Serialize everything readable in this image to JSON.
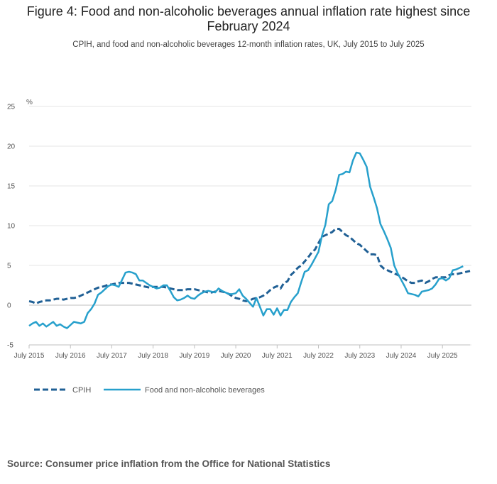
{
  "header": {
    "title": "Figure 4: Food and non-alcoholic beverages annual inflation rate highest since February 2024",
    "subtitle": "CPIH, and food and non-alcoholic beverages 12-month inflation rates, UK, July 2015 to July 2025"
  },
  "footer": {
    "source": "Source: Consumer price inflation from the Office for National Statistics"
  },
  "chart_data": {
    "type": "line",
    "title": "Figure 4: Food and non-alcoholic beverages annual inflation rate highest since February 2024",
    "subtitle": "CPIH, and food and non-alcoholic beverages 12-month inflation rates, UK, July 2015 to July 2025",
    "ylabel": "%",
    "xlabel": "",
    "ylim": [
      -5,
      25
    ],
    "yticks": [
      "25",
      "20",
      "15",
      "10",
      "5",
      "0",
      "-5"
    ],
    "xticks": [
      "July 2015",
      "July 2016",
      "July 2017",
      "July 2018",
      "July 2019",
      "July 2020",
      "July 2021",
      "July 2022",
      "July 2023",
      "July 2024",
      "July 2025"
    ],
    "x_start": "July 2015",
    "x_step": "1 month",
    "legend_position": "bottom-left",
    "colors": {
      "cpih": "#206095",
      "food": "#27a0cc",
      "grid": "#e6e6e6"
    },
    "series": [
      {
        "name": "CPIH",
        "style": "dashed",
        "values": [
          0.5,
          0.4,
          0.2,
          0.4,
          0.5,
          0.6,
          0.6,
          0.7,
          0.8,
          0.8,
          0.7,
          0.8,
          0.9,
          0.9,
          1.0,
          1.2,
          1.4,
          1.6,
          1.8,
          2.0,
          2.2,
          2.3,
          2.4,
          2.6,
          2.6,
          2.7,
          2.8,
          2.8,
          2.8,
          2.8,
          2.7,
          2.6,
          2.5,
          2.4,
          2.3,
          2.2,
          2.3,
          2.3,
          2.3,
          2.3,
          2.2,
          2.1,
          2.0,
          1.9,
          1.9,
          1.9,
          2.0,
          2.0,
          2.0,
          1.9,
          1.8,
          1.7,
          1.6,
          1.6,
          1.7,
          1.8,
          1.7,
          1.6,
          1.4,
          1.1,
          0.9,
          0.8,
          0.6,
          0.5,
          0.6,
          0.8,
          0.9,
          1.0,
          1.2,
          1.5,
          1.9,
          2.2,
          2.4,
          2.1,
          2.8,
          3.0,
          3.8,
          4.2,
          4.7,
          5.0,
          5.5,
          6.0,
          6.6,
          7.0,
          7.8,
          8.6,
          8.8,
          9.0,
          9.2,
          9.6,
          9.6,
          9.2,
          8.8,
          8.6,
          8.2,
          7.8,
          7.6,
          7.2,
          6.8,
          6.4,
          6.4,
          6.3,
          5.0,
          4.6,
          4.4,
          4.2,
          4.0,
          3.8,
          3.6,
          3.3,
          3.0,
          2.8,
          2.8,
          3.0,
          3.1,
          2.8,
          3.0,
          3.3,
          3.5,
          3.5,
          3.5,
          3.5,
          3.8,
          3.9,
          3.9,
          4.0,
          4.1,
          4.2,
          4.3
        ]
      },
      {
        "name": "Food and non-alcoholic beverages",
        "style": "solid",
        "values": [
          -2.6,
          -2.3,
          -2.1,
          -2.6,
          -2.3,
          -2.7,
          -2.4,
          -2.1,
          -2.6,
          -2.4,
          -2.7,
          -2.9,
          -2.5,
          -2.1,
          -2.2,
          -2.3,
          -2.1,
          -1.0,
          -0.5,
          0.2,
          1.3,
          1.6,
          2.0,
          2.4,
          2.6,
          2.5,
          2.3,
          3.2,
          4.1,
          4.2,
          4.1,
          3.9,
          3.1,
          3.1,
          2.8,
          2.5,
          2.3,
          2.1,
          2.2,
          2.5,
          2.5,
          1.8,
          1.0,
          0.6,
          0.7,
          0.9,
          1.2,
          0.9,
          0.8,
          1.2,
          1.5,
          1.7,
          1.8,
          1.7,
          1.6,
          2.1,
          1.8,
          1.6,
          1.4,
          1.4,
          1.5,
          2.0,
          1.2,
          0.8,
          0.3,
          -0.2,
          0.9,
          -0.2,
          -1.3,
          -0.5,
          -0.5,
          -1.2,
          -0.4,
          -1.3,
          -0.6,
          -0.6,
          0.4,
          1.0,
          1.5,
          2.9,
          4.2,
          4.4,
          5.1,
          5.9,
          6.7,
          8.7,
          10.1,
          12.7,
          13.1,
          14.5,
          16.4,
          16.5,
          16.8,
          16.7,
          18.2,
          19.2,
          19.1,
          18.3,
          17.4,
          14.9,
          13.6,
          12.2,
          10.2,
          9.3,
          8.3,
          7.2,
          5.0,
          4.0,
          3.2,
          2.4,
          1.5,
          1.4,
          1.3,
          1.1,
          1.7,
          1.8,
          1.9,
          2.1,
          2.6,
          3.3,
          3.4,
          3.1,
          3.4,
          4.4,
          4.5,
          4.7,
          4.9
        ]
      }
    ]
  }
}
